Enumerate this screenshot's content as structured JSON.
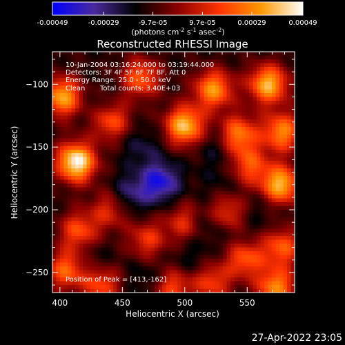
{
  "chart_data": {
    "type": "heatmap",
    "title": "Reconstructed RHESSI Image",
    "xlabel": "Heliocentric X (arcsec)",
    "ylabel": "Heliocentric Y (arcsec)",
    "xlim": [
      394,
      588
    ],
    "ylim": [
      -266,
      -74
    ],
    "x_ticks": [
      400,
      450,
      500,
      550
    ],
    "y_ticks": [
      -100,
      -150,
      -200,
      -250
    ],
    "colorbar": {
      "min": -0.00049,
      "max": 0.00049,
      "ticks": [
        {
          "value": -0.00049,
          "label": "-0.00049"
        },
        {
          "value": -0.00029,
          "label": "-0.00029"
        },
        {
          "value": -9.7e-05,
          "label": "-9.7e-05"
        },
        {
          "value": 9.7e-05,
          "label": "9.7e-05"
        },
        {
          "value": 0.00029,
          "label": "0.00029"
        },
        {
          "value": 0.00049,
          "label": "0.00049"
        }
      ],
      "unit_main": "(photons cm",
      "unit_exp1": "-2",
      "unit_s": " s",
      "unit_exp2": "-1",
      "unit_asec": " asec",
      "unit_exp3": "-2",
      "unit_close": ")",
      "colors": [
        "#0000ff",
        "#4a2a9e",
        "#000000",
        "#8b0000",
        "#ff3300",
        "#ff9900",
        "#ffffff"
      ]
    },
    "annotations": {
      "time_range": "10-Jan-2004 03:16:24.000 to 03:19:44.000",
      "detectors": "Detectors: 3F 4F 5F 6F 7F 8F, Att 0",
      "energy": "Energy Range: 25.0 - 50.0 keV",
      "clean": "Clean",
      "counts": "Total counts: 3.40E+03",
      "peak": "Position of Peak = [413,-162]"
    },
    "peak": {
      "x": 413,
      "y": -162
    },
    "hot_spots": [
      {
        "x": 413,
        "y": -162,
        "v": 0.00049
      },
      {
        "x": 402,
        "y": -110,
        "v": 0.00034
      },
      {
        "x": 440,
        "y": -128,
        "v": 0.00028
      },
      {
        "x": 465,
        "y": -95,
        "v": 0.00022
      },
      {
        "x": 523,
        "y": -104,
        "v": 0.00031
      },
      {
        "x": 500,
        "y": -133,
        "v": 0.00039
      },
      {
        "x": 543,
        "y": -140,
        "v": 0.00027
      },
      {
        "x": 567,
        "y": -100,
        "v": 0.00037
      },
      {
        "x": 578,
        "y": -138,
        "v": 0.00029
      },
      {
        "x": 577,
        "y": -180,
        "v": 0.00037
      },
      {
        "x": 552,
        "y": -165,
        "v": 0.00018
      },
      {
        "x": 578,
        "y": -230,
        "v": 0.00021
      },
      {
        "x": 548,
        "y": -238,
        "v": 0.00025
      },
      {
        "x": 573,
        "y": -262,
        "v": 0.00029
      },
      {
        "x": 415,
        "y": -217,
        "v": 0.00019
      },
      {
        "x": 405,
        "y": -248,
        "v": 0.00023
      },
      {
        "x": 433,
        "y": -260,
        "v": 0.00018
      },
      {
        "x": 490,
        "y": -262,
        "v": 0.00017
      },
      {
        "x": 522,
        "y": -258,
        "v": 0.00016
      },
      {
        "x": 470,
        "y": -224,
        "v": 0.00014
      },
      {
        "x": 500,
        "y": -210,
        "v": 0.00013
      },
      {
        "x": 440,
        "y": -200,
        "v": 0.00012
      },
      {
        "x": 533,
        "y": -202,
        "v": 0.00016
      }
    ],
    "cold_spots": [
      {
        "x": 480,
        "y": -178,
        "v": -0.00034
      },
      {
        "x": 456,
        "y": -188,
        "v": -0.00021
      },
      {
        "x": 435,
        "y": -122,
        "v": -0.00017
      },
      {
        "x": 466,
        "y": -150,
        "v": -0.00014
      },
      {
        "x": 525,
        "y": -150,
        "v": -0.00013
      },
      {
        "x": 518,
        "y": -210,
        "v": -0.00016
      },
      {
        "x": 545,
        "y": -228,
        "v": -0.00012
      },
      {
        "x": 425,
        "y": -240,
        "v": -0.00011
      },
      {
        "x": 470,
        "y": -255,
        "v": -0.00012
      },
      {
        "x": 530,
        "y": -180,
        "v": -0.0001
      },
      {
        "x": 562,
        "y": -200,
        "v": -9e-05
      },
      {
        "x": 505,
        "y": -240,
        "v": -0.00011
      }
    ]
  },
  "footer": {
    "timestamp": "27-Apr-2022 23:05"
  }
}
